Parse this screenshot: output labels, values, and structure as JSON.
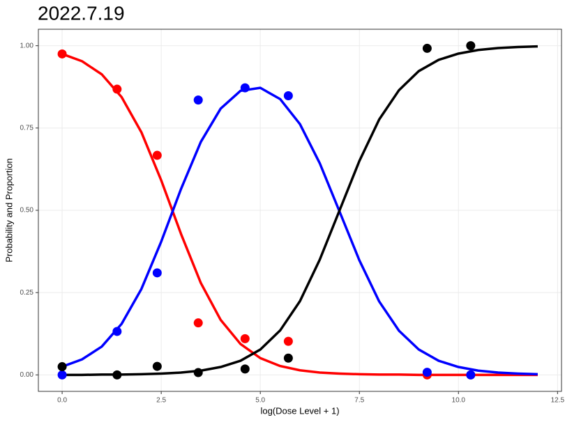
{
  "chart_data": {
    "type": "scatter",
    "title": "2022.7.19",
    "x_label": "log(Dose Level + 1)",
    "y_label": "Probability and Proportion",
    "xlim": [
      -0.6,
      12.6
    ],
    "ylim": [
      -0.05,
      1.05
    ],
    "xticks": [
      {
        "value": 0,
        "label": "0.0"
      },
      2.5,
      {
        "value": 5,
        "label": "5.0"
      },
      7.5,
      {
        "value": 10,
        "label": "10.0"
      },
      12.5
    ],
    "yticks": [
      {
        "value": 0,
        "label": "0.00"
      },
      {
        "value": 0.25,
        "label": "0.25"
      },
      {
        "value": 0.5,
        "label": "0.50"
      },
      {
        "value": 0.75,
        "label": "0.75"
      },
      {
        "value": 1,
        "label": "1.00"
      }
    ],
    "grid": true,
    "x": [
      0,
      1.386,
      2.398,
      3.434,
      4.615,
      5.707,
      9.21,
      10.309
    ],
    "series": [
      {
        "color": "#ff0000",
        "values": [
          0.975,
          0.868,
          0.667,
          0.158,
          0.11,
          0.102,
          0.0,
          0.0
        ]
      },
      {
        "color": "#0000ff",
        "values": [
          0.0,
          0.132,
          0.31,
          0.835,
          0.872,
          0.848,
          0.008,
          0.0
        ]
      },
      {
        "color": "#000000",
        "values": [
          0.025,
          0.0,
          0.026,
          0.007,
          0.018,
          0.051,
          0.992,
          1.0
        ]
      }
    ],
    "curves": {
      "x": [
        0,
        0.5,
        1,
        1.5,
        2,
        2.5,
        3,
        3.5,
        4,
        4.5,
        5,
        5.5,
        6,
        6.5,
        7,
        7.5,
        8,
        8.5,
        9,
        9.5,
        10,
        10.5,
        11,
        11.5,
        12
      ],
      "series": [
        {
          "color": "#ff0000",
          "values": [
            0.975,
            0.953,
            0.913,
            0.844,
            0.737,
            0.591,
            0.428,
            0.279,
            0.167,
            0.094,
            0.051,
            0.027,
            0.014,
            0.007,
            0.004,
            0.002,
            0.001,
            0.001,
            0.0,
            0.0,
            0.0,
            0.0,
            0.0,
            0.0,
            0.0
          ]
        },
        {
          "color": "#0000ff",
          "values": [
            0.025,
            0.047,
            0.086,
            0.155,
            0.261,
            0.405,
            0.565,
            0.708,
            0.809,
            0.863,
            0.872,
            0.838,
            0.762,
            0.643,
            0.496,
            0.348,
            0.223,
            0.134,
            0.077,
            0.043,
            0.024,
            0.013,
            0.007,
            0.004,
            0.002
          ]
        },
        {
          "color": "#000000",
          "values": [
            0.0,
            0.0,
            0.001,
            0.001,
            0.002,
            0.004,
            0.007,
            0.013,
            0.024,
            0.043,
            0.077,
            0.135,
            0.224,
            0.35,
            0.5,
            0.65,
            0.776,
            0.865,
            0.923,
            0.957,
            0.976,
            0.987,
            0.993,
            0.996,
            0.998
          ]
        }
      ]
    }
  }
}
